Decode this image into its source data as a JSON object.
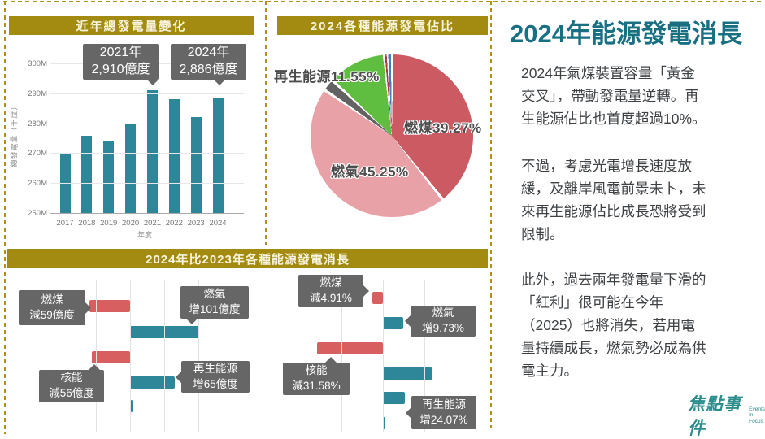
{
  "colors": {
    "gold": "#a28b10",
    "gold_dash": "#b39016",
    "teal_bar": "#2e8798",
    "red_bar": "#d85f5f",
    "callout_bg": "#666666",
    "title_teal": "#187082",
    "logo_teal": "#2d8d8d"
  },
  "trend_panel": {
    "header": "近年總發電量變化",
    "y_axis_title": "總發電量（千度）",
    "x_axis_title": "年度",
    "callouts": [
      {
        "year": "2021年",
        "value": "2,910億度"
      },
      {
        "year": "2024年",
        "value": "2,886億度"
      }
    ]
  },
  "pie_panel": {
    "header": "2024各種能源發電佔比",
    "labels": {
      "renewable": "再生能源11.55%",
      "coal": "燃煤39.27%",
      "gas": "燃氣45.25%"
    }
  },
  "change_panel": {
    "header": "2024年比2023年各種能源發電消長",
    "callouts_abs": [
      {
        "name": "燃煤",
        "change": "減59億度"
      },
      {
        "name": "燃氣",
        "change": "增101億度"
      },
      {
        "name": "核能",
        "change": "減56億度"
      },
      {
        "name": "再生能源",
        "change": "增65億度"
      }
    ],
    "callouts_pct": [
      {
        "name": "燃煤",
        "change": "減4.91%"
      },
      {
        "name": "燃氣",
        "change": "增9.73%"
      },
      {
        "name": "核能",
        "change": "減31.58%"
      },
      {
        "name": "再生能源",
        "change": "增24.07%"
      }
    ]
  },
  "article": {
    "title": "2024年能源發電消長",
    "paragraphs": [
      "2024年氣煤裝置容量「黃金\n交叉」，帶動發電量逆轉。再\n生能源佔比也首度超過10%。",
      "不過，考慮光電增長速度放\n緩，及離岸風電前景未卜，未\n來再生能源佔比成長恐將受到\n限制。",
      "此外，過去兩年發電量下滑的\n「紅利」很可能在今年\n（2025）也將消失，若用電\n量持續成長，燃氣勢必成為供\n電主力。"
    ],
    "logo_name": "焦點事件",
    "logo_tagline": "Events\nIn\nFocus"
  },
  "chart_data": [
    {
      "type": "bar",
      "title": "近年總發電量變化",
      "categories": [
        "2017",
        "2018",
        "2019",
        "2020",
        "2021",
        "2022",
        "2023",
        "2024"
      ],
      "values": [
        270,
        275.8,
        274.2,
        280,
        291,
        288.1,
        282.1,
        288.6
      ],
      "unit": "M",
      "xlabel": "年度",
      "ylabel": "總發電量（千度）",
      "ylim": [
        250,
        300
      ],
      "yticks": [
        250,
        260,
        270,
        280,
        290,
        300
      ],
      "grid": true,
      "bar_color": "#2e8798",
      "annotations": [
        "2021年 2,910億度",
        "2024年 2,886億度"
      ]
    },
    {
      "type": "pie",
      "title": "2024各種能源發電佔比",
      "slices": [
        {
          "label": "燃煤",
          "value": 39.27,
          "color": "#cb5a63"
        },
        {
          "label": "燃氣",
          "value": 45.25,
          "color": "#e8a2a7"
        },
        {
          "label": "",
          "value": 2.43,
          "color": "#626262"
        },
        {
          "label": "再生能源",
          "value": 11.55,
          "color": "#5fbe3f"
        },
        {
          "label": "",
          "value": 0.6,
          "color": "#ae3b43"
        },
        {
          "label": "",
          "value": 0.9,
          "color": "#4a79c5"
        }
      ],
      "labeled_slices": [
        "燃煤39.27%",
        "燃氣45.25%",
        "再生能源11.55%"
      ]
    },
    {
      "type": "bar",
      "subtype": "diverging-horizontal",
      "title": "2024年比2023年各種能源發電消長",
      "negative_color": "#d85f5f",
      "positive_color": "#2e8798",
      "left_chart": {
        "unit": "億度",
        "rows": [
          {
            "label": "燃煤",
            "value": -59
          },
          {
            "label": "燃氣",
            "value": 101
          },
          {
            "label": "核能",
            "value": -56
          },
          {
            "label": "再生能源",
            "value": 65
          },
          {
            "label": "",
            "value": 4
          }
        ]
      },
      "right_chart": {
        "unit": "%",
        "rows": [
          {
            "label": "燃煤",
            "value": -4.91
          },
          {
            "label": "燃氣",
            "value": 9.73
          },
          {
            "label": "核能",
            "value": -31.58
          },
          {
            "label": "再生能源",
            "value": 24.07
          },
          {
            "label": "",
            "value": 10.6
          },
          {
            "label": "",
            "value": 1.2
          }
        ]
      }
    }
  ]
}
